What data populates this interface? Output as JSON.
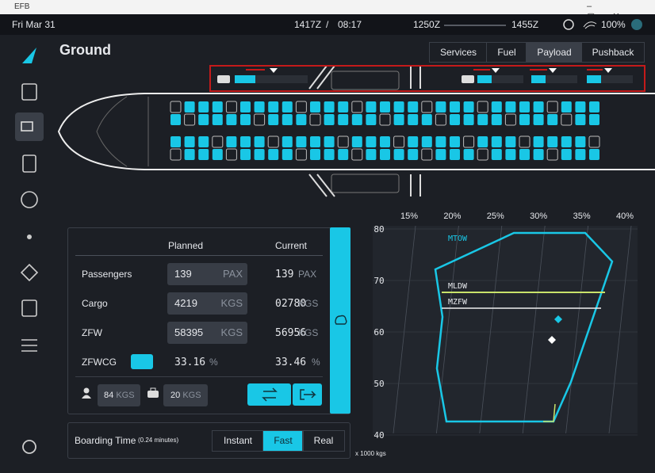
{
  "window": {
    "title": "EFB"
  },
  "status_bar": {
    "date": "Fri Mar 31",
    "utc_time": "1417Z",
    "separator": "/",
    "local_time": "08:17",
    "departure_time": "1250Z",
    "arrival_time": "1455Z",
    "battery": "100%"
  },
  "page": {
    "title": "Ground",
    "tabs": [
      "Services",
      "Fuel",
      "Payload",
      "Pushback"
    ],
    "active_tab": 2
  },
  "payload_table": {
    "headers": [
      "Planned",
      "Current"
    ],
    "rows": [
      {
        "label": "Passengers",
        "planned": "139",
        "planned_unit": "PAX",
        "current": "139",
        "current_unit": "PAX"
      },
      {
        "label": "Cargo",
        "planned": "4219",
        "planned_unit": "KGS",
        "current": "02780",
        "current_unit": "KGS"
      },
      {
        "label": "ZFW",
        "planned": "58395",
        "planned_unit": "KGS",
        "current": "56956",
        "current_unit": "KGS"
      },
      {
        "label": "ZFWCG",
        "planned": "33.16",
        "planned_unit": "%",
        "current": "33.46",
        "current_unit": "%"
      }
    ]
  },
  "weights": {
    "pax_weight": "84",
    "pax_unit": "KGS",
    "bag_weight": "20",
    "bag_unit": "KGS"
  },
  "boarding": {
    "label": "Boarding Time",
    "duration": "(0.24 minutes)",
    "options": [
      "Instant",
      "Fast",
      "Real"
    ],
    "selected": 1
  },
  "cg_chart": {
    "x_labels": [
      "15%",
      "20%",
      "25%",
      "30%",
      "35%",
      "40%"
    ],
    "y_labels": [
      "80",
      "70",
      "60",
      "50",
      "40"
    ],
    "limits": [
      "MTOW",
      "MLDW",
      "MZFW"
    ],
    "unit_note": "x 1000 kgs"
  }
}
